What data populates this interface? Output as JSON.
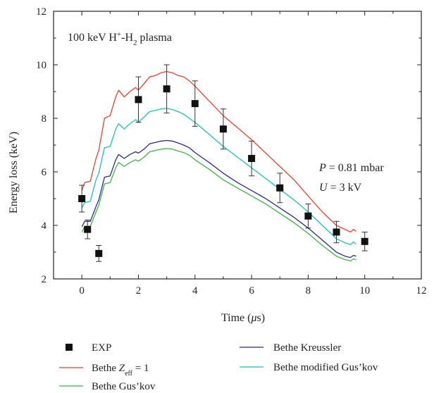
{
  "chart_data": {
    "type": "line",
    "annotation": {
      "text_main": "100 keV H",
      "sup": "+",
      "text_mid": "-H",
      "sub": "2",
      "text_end": " plasma"
    },
    "params": {
      "p_var": "P",
      "p_val": " = 0.81 mbar",
      "u_var": "U",
      "u_val": " = 3 kV"
    },
    "xlabel": {
      "pre": "Time (",
      "mu": "μ",
      "post": "s)"
    },
    "ylabel": "Energy loss (keV)",
    "xlim": [
      -1,
      12
    ],
    "ylim": [
      2,
      12
    ],
    "xticks": [
      0,
      2,
      4,
      6,
      8,
      10,
      12
    ],
    "yticks": [
      2,
      4,
      6,
      8,
      10,
      12
    ],
    "legend_position": "bottom",
    "exp": {
      "name": "EXP",
      "color": "#111111",
      "points": [
        {
          "x": 0.0,
          "y": 5.0,
          "err": 0.5
        },
        {
          "x": 0.2,
          "y": 3.85,
          "err": 0.35
        },
        {
          "x": 0.6,
          "y": 2.95,
          "err": 0.3
        },
        {
          "x": 2.0,
          "y": 8.7,
          "err": 0.85
        },
        {
          "x": 3.0,
          "y": 9.1,
          "err": 0.9
        },
        {
          "x": 4.0,
          "y": 8.55,
          "err": 0.85
        },
        {
          "x": 5.0,
          "y": 7.6,
          "err": 0.75
        },
        {
          "x": 6.0,
          "y": 6.5,
          "err": 0.65
        },
        {
          "x": 7.0,
          "y": 5.4,
          "err": 0.55
        },
        {
          "x": 8.0,
          "y": 4.35,
          "err": 0.45
        },
        {
          "x": 9.0,
          "y": 3.75,
          "err": 0.4
        },
        {
          "x": 10.0,
          "y": 3.4,
          "err": 0.35
        }
      ]
    },
    "series": [
      {
        "name": "Bethe Zeff = 1",
        "label_pre": "Bethe ",
        "label_var": "Z",
        "label_sub": "eff",
        "label_post": " = 1",
        "color": "#e8402a",
        "x": [
          0,
          0.1,
          0.3,
          0.5,
          0.6,
          0.8,
          1.0,
          1.2,
          1.3,
          1.5,
          1.7,
          1.9,
          2.0,
          2.2,
          2.4,
          2.6,
          2.8,
          3.0,
          3.2,
          3.4,
          3.6,
          3.8,
          4.0,
          4.5,
          5.0,
          5.5,
          6.0,
          6.5,
          7.0,
          7.5,
          8.0,
          8.5,
          9.0,
          9.3,
          9.5,
          9.6,
          9.7
        ],
        "y": [
          5.3,
          5.6,
          5.65,
          6.5,
          6.8,
          8.0,
          8.1,
          8.8,
          9.05,
          8.8,
          9.0,
          9.15,
          9.05,
          9.3,
          9.55,
          9.6,
          9.7,
          9.75,
          9.7,
          9.6,
          9.55,
          9.4,
          9.2,
          8.65,
          8.1,
          7.65,
          7.2,
          6.7,
          6.2,
          5.7,
          5.1,
          4.5,
          4.0,
          3.85,
          3.75,
          3.85,
          3.78
        ]
      },
      {
        "name": "Bethe Gus'kov",
        "label_pre": "Bethe Gus’kov",
        "color": "#3cb44b",
        "x": [
          0,
          0.1,
          0.3,
          0.5,
          0.6,
          0.8,
          1.0,
          1.2,
          1.3,
          1.5,
          1.7,
          1.9,
          2.0,
          2.2,
          2.4,
          2.6,
          2.8,
          3.0,
          3.2,
          3.4,
          3.6,
          3.8,
          4.0,
          4.5,
          5.0,
          5.5,
          6.0,
          6.5,
          7.0,
          7.5,
          8.0,
          8.5,
          9.0,
          9.3,
          9.5,
          9.6,
          9.7
        ],
        "y": [
          3.75,
          3.95,
          3.95,
          4.5,
          4.75,
          5.55,
          5.6,
          6.15,
          6.35,
          6.2,
          6.35,
          6.45,
          6.4,
          6.55,
          6.75,
          6.8,
          6.85,
          6.87,
          6.85,
          6.78,
          6.72,
          6.62,
          6.45,
          6.1,
          5.7,
          5.4,
          5.1,
          4.8,
          4.45,
          4.1,
          3.7,
          3.25,
          2.85,
          2.72,
          2.67,
          2.75,
          2.72
        ]
      },
      {
        "name": "Bethe Kreussler",
        "label_pre": "Bethe Kreussler",
        "color": "#2e2a8a",
        "x": [
          0,
          0.1,
          0.3,
          0.5,
          0.6,
          0.8,
          1.0,
          1.2,
          1.3,
          1.5,
          1.7,
          1.9,
          2.0,
          2.2,
          2.4,
          2.6,
          2.8,
          3.0,
          3.2,
          3.4,
          3.6,
          3.8,
          4.0,
          4.5,
          5.0,
          5.5,
          6.0,
          6.5,
          7.0,
          7.5,
          8.0,
          8.5,
          9.0,
          9.3,
          9.5,
          9.6,
          9.7
        ],
        "y": [
          3.95,
          4.15,
          4.15,
          4.7,
          4.95,
          5.8,
          5.85,
          6.45,
          6.65,
          6.5,
          6.65,
          6.75,
          6.7,
          6.85,
          7.05,
          7.1,
          7.15,
          7.17,
          7.15,
          7.08,
          7.0,
          6.9,
          6.72,
          6.35,
          5.95,
          5.6,
          5.3,
          5.0,
          4.65,
          4.3,
          3.9,
          3.45,
          3.0,
          2.85,
          2.8,
          2.88,
          2.85
        ]
      },
      {
        "name": "Bethe modified Gus'kov",
        "label_pre": "Bethe modified Gus’kov",
        "color": "#1fbfb8",
        "x": [
          0,
          0.1,
          0.3,
          0.5,
          0.6,
          0.8,
          1.0,
          1.2,
          1.3,
          1.5,
          1.7,
          1.9,
          2.0,
          2.2,
          2.4,
          2.6,
          2.8,
          3.0,
          3.2,
          3.4,
          3.6,
          3.8,
          4.0,
          4.5,
          5.0,
          5.5,
          6.0,
          6.5,
          7.0,
          7.5,
          8.0,
          8.5,
          9.0,
          9.3,
          9.5,
          9.6,
          9.7
        ],
        "y": [
          4.65,
          4.85,
          4.9,
          5.7,
          5.95,
          6.9,
          6.95,
          7.6,
          7.8,
          7.6,
          7.8,
          7.95,
          7.85,
          8.05,
          8.25,
          8.3,
          8.35,
          8.37,
          8.33,
          8.25,
          8.15,
          8.0,
          7.85,
          7.4,
          6.95,
          6.55,
          6.15,
          5.75,
          5.35,
          4.95,
          4.5,
          4.0,
          3.5,
          3.35,
          3.28,
          3.38,
          3.3
        ]
      }
    ]
  }
}
